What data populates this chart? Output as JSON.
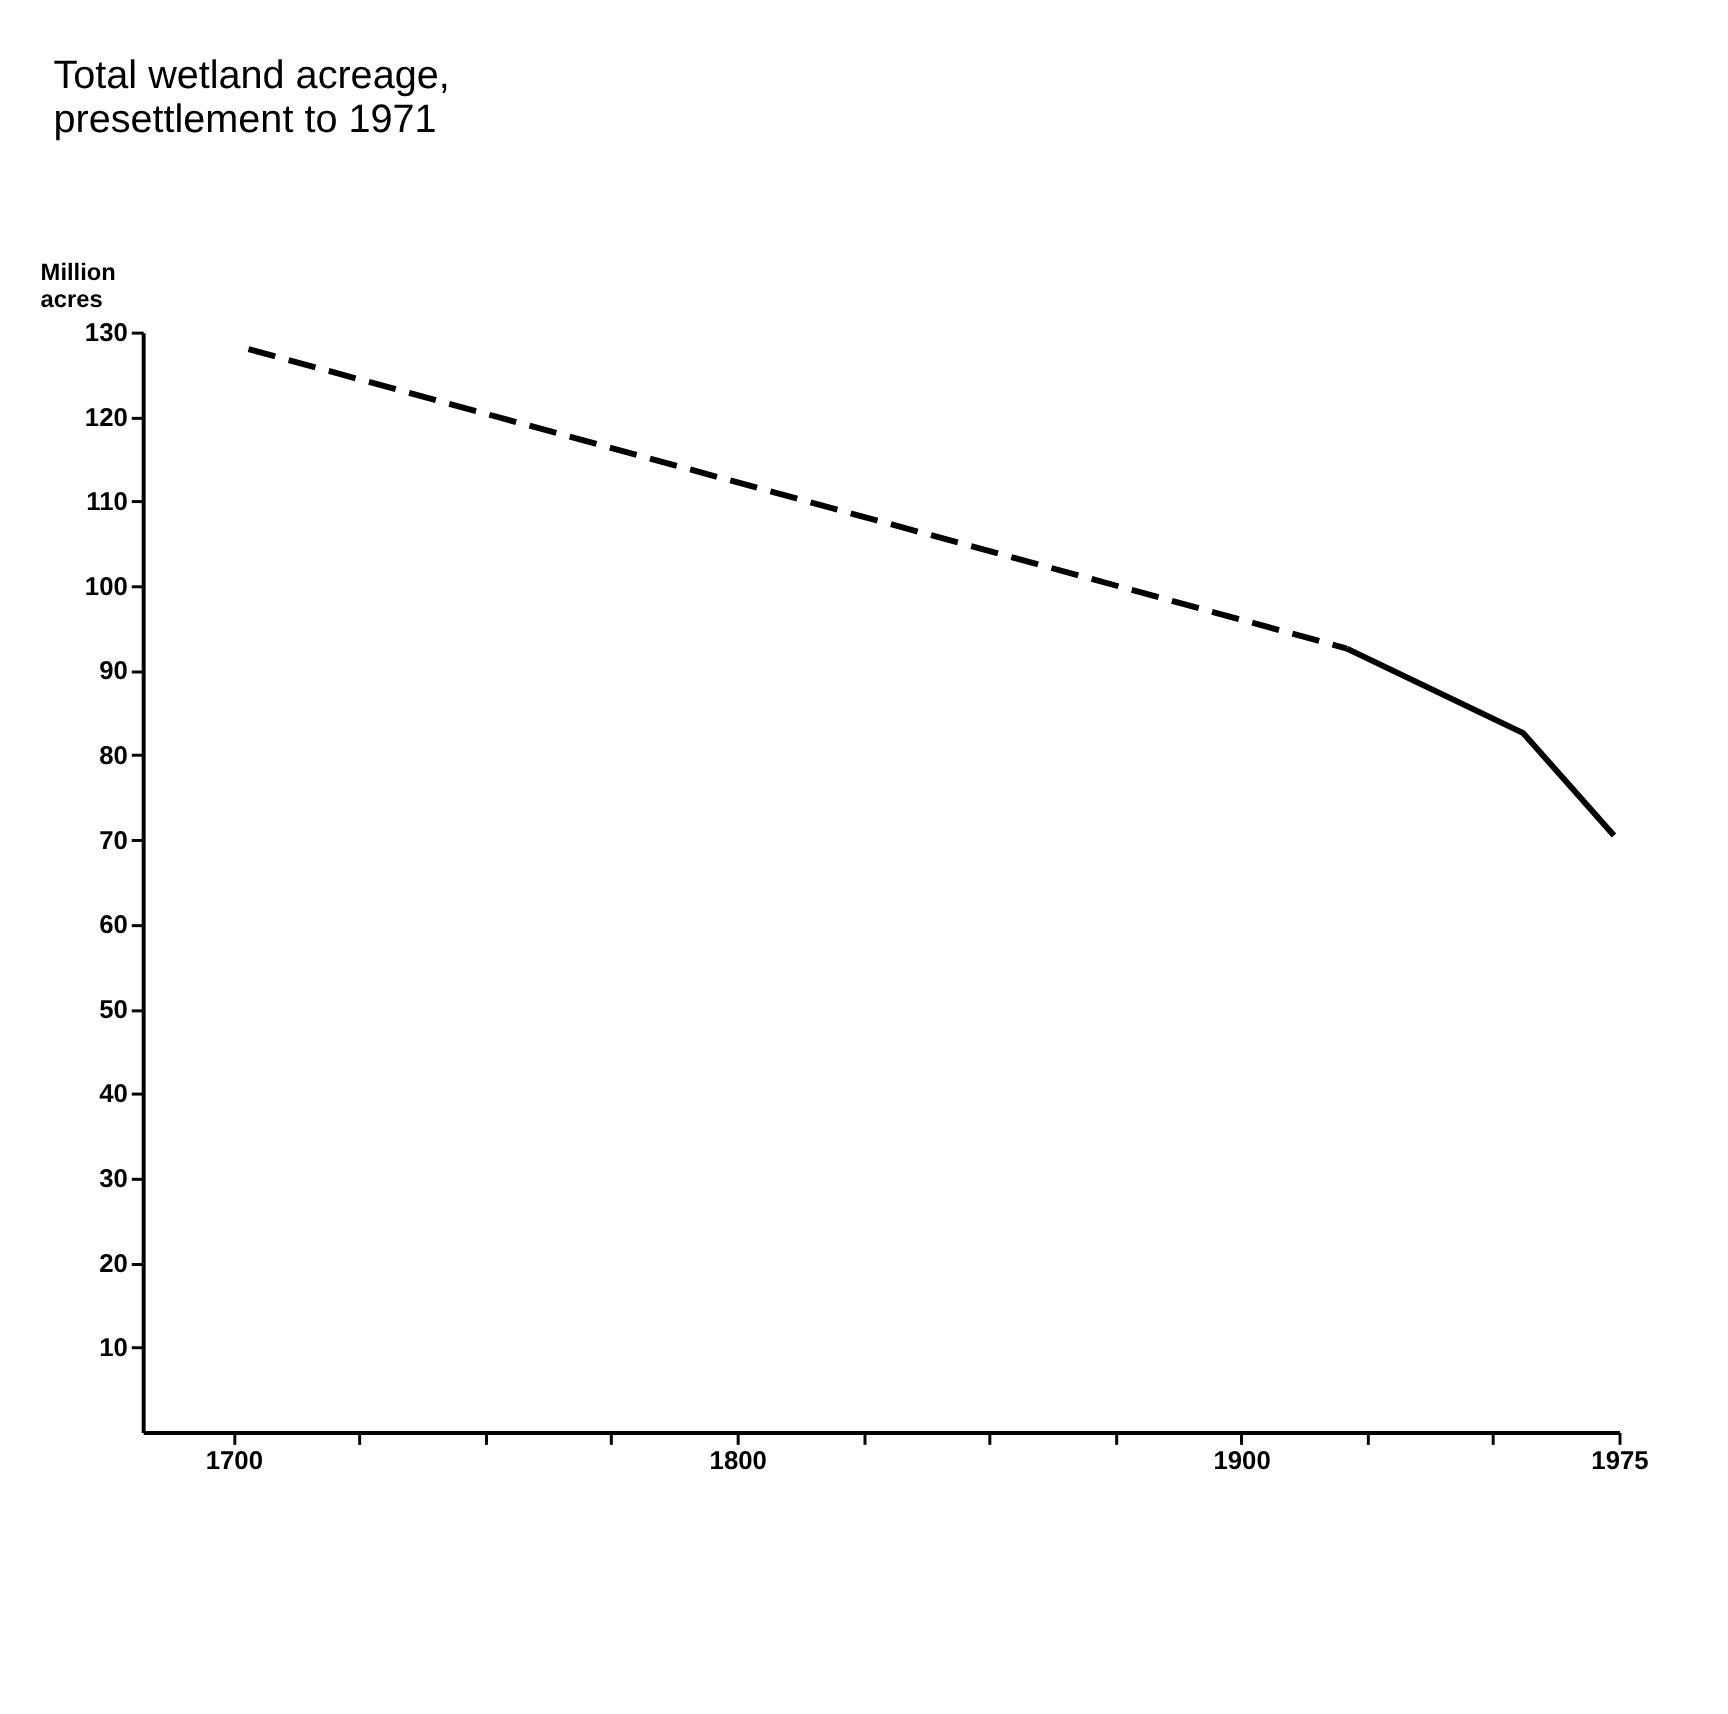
{
  "chart_data": {
    "type": "line",
    "title": "Total wetland acreage, presettlement to 1971",
    "ylabel": "Million acres",
    "series": [
      {
        "x": [
          1703,
          1921
        ],
        "values": [
          128,
          92.6
        ],
        "color": "#000000",
        "line_style": "dashed"
      },
      {
        "x": [
          1921,
          1956,
          1974
        ],
        "values": [
          92.6,
          82.6,
          70.5
        ],
        "color": "#000000",
        "line_style": "solid"
      }
    ],
    "xlim": [
      1682,
      1975
    ],
    "xticks": [
      1700,
      {
        "value": 1725,
        "label": null
      },
      {
        "value": 1750,
        "label": null
      },
      {
        "value": 1775,
        "label": null
      },
      1800,
      {
        "value": 1825,
        "label": null
      },
      {
        "value": 1850,
        "label": null
      },
      {
        "value": 1875,
        "label": null
      },
      1900,
      {
        "value": 1925,
        "label": null
      },
      {
        "value": 1950,
        "label": null
      },
      1975
    ],
    "ylim": [
      0,
      130
    ],
    "yticks": [
      10,
      20,
      30,
      40,
      50,
      60,
      70,
      80,
      90,
      100,
      110,
      120,
      130
    ],
    "grid": false,
    "marker": "none"
  }
}
